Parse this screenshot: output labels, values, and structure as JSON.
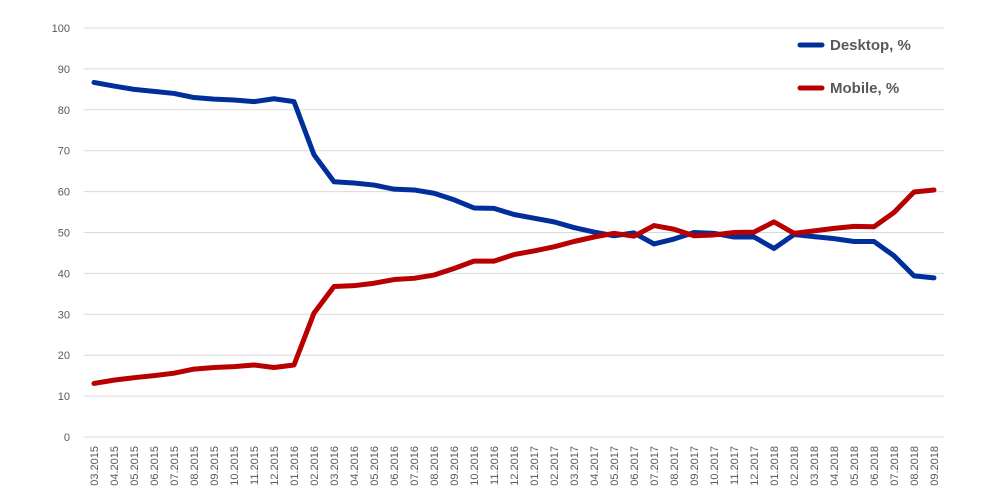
{
  "chart_data": {
    "type": "line",
    "title": "",
    "xlabel": "",
    "ylabel": "",
    "ylim": [
      0,
      100
    ],
    "yticks": [
      0,
      10,
      20,
      30,
      40,
      50,
      60,
      70,
      80,
      90,
      100
    ],
    "grid": true,
    "legend_position": "top-right",
    "categories": [
      "03.2015",
      "04.2015",
      "05.2015",
      "06.2015",
      "07.2015",
      "08.2015",
      "09.2015",
      "10.2015",
      "11.2015",
      "12.2015",
      "01.2016",
      "02.2016",
      "03.2016",
      "04.2016",
      "05.2016",
      "06.2016",
      "07.2016",
      "08.2016",
      "09.2016",
      "10.2016",
      "11.2016",
      "12.2016",
      "01.2017",
      "02.2017",
      "03.2017",
      "04.2017",
      "05.2017",
      "06.2017",
      "07.2017",
      "08.2017",
      "09.2017",
      "10.2017",
      "11.2017",
      "12.2017",
      "01.2018",
      "02.2018",
      "03.2018",
      "04.2018",
      "05.2018",
      "06.2018",
      "07.2018",
      "08.2018",
      "09.2018"
    ],
    "series": [
      {
        "name": "Desktop, %",
        "color": "#002f9b",
        "values": [
          86.7,
          85.8,
          85.0,
          84.5,
          84.0,
          83.0,
          82.6,
          82.4,
          82.0,
          82.7,
          82.0,
          69.0,
          62.4,
          62.1,
          61.6,
          60.6,
          60.4,
          59.6,
          58.0,
          56.0,
          55.9,
          54.4,
          53.5,
          52.6,
          51.2,
          50.1,
          49.2,
          49.9,
          47.2,
          48.4,
          50.0,
          49.8,
          48.9,
          48.9,
          46.1,
          49.5,
          49.0,
          48.5,
          47.8,
          47.8,
          44.3,
          39.4,
          38.9
        ]
      },
      {
        "name": "Mobile, %",
        "color": "#b80000",
        "values": [
          13.1,
          13.9,
          14.5,
          15.0,
          15.6,
          16.6,
          17.0,
          17.2,
          17.6,
          17.0,
          17.6,
          30.3,
          36.8,
          37.0,
          37.6,
          38.5,
          38.8,
          39.6,
          41.2,
          43.0,
          43.0,
          44.6,
          45.5,
          46.5,
          47.8,
          48.9,
          49.8,
          49.1,
          51.7,
          50.8,
          49.2,
          49.4,
          50.0,
          50.1,
          52.6,
          49.8,
          50.4,
          51.0,
          51.5,
          51.4,
          54.9,
          59.9,
          60.4
        ]
      }
    ]
  }
}
